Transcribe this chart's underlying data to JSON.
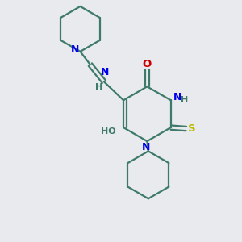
{
  "bg_color": "#e8eaed",
  "bond_color": "#3d7a6a",
  "N_color": "#0000ee",
  "O_color": "#cc0000",
  "S_color": "#bbbb00",
  "H_color": "#3d7a6a",
  "lw": 1.6,
  "figsize": [
    3.0,
    3.0
  ],
  "dpi": 100,
  "xlim": [
    0,
    10
  ],
  "ylim": [
    0,
    10
  ]
}
